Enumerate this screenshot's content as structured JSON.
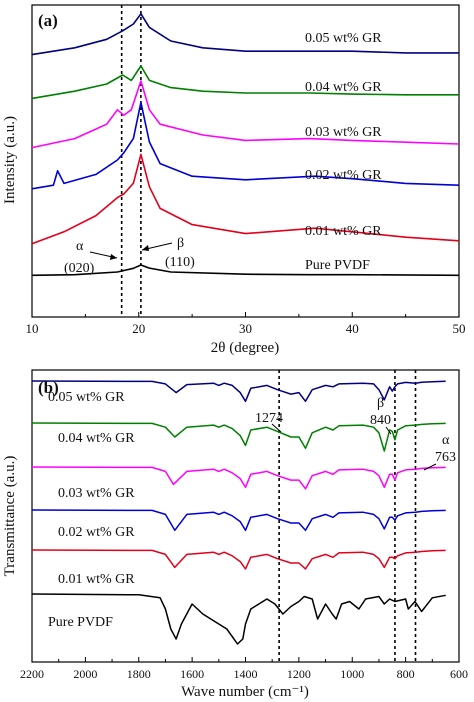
{
  "chart_data": [
    {
      "type": "line",
      "panel_label": "(a)",
      "xlabel": "2θ (degree)",
      "ylabel": "Intensity (a.u.)",
      "xlim": [
        10,
        50
      ],
      "x_ticks": [
        "10",
        "20",
        "30",
        "40",
        "50"
      ],
      "reference_lines_x": [
        18.4,
        20.2
      ],
      "annotations": {
        "alpha": "α",
        "alpha_plane": "(020)",
        "beta": "β",
        "beta_plane": "(110)"
      },
      "series": [
        {
          "name": "Pure PVDF",
          "color": "#000000",
          "x": [
            10,
            14,
            18,
            19.5,
            20.2,
            21,
            23,
            30,
            36,
            40,
            50
          ],
          "y": [
            0.3,
            0.6,
            1.8,
            3.5,
            5.0,
            3.6,
            1.8,
            0.8,
            0.6,
            0.6,
            0.3
          ]
        },
        {
          "name": "0.01 wt% GR",
          "color": "#e3001b",
          "x": [
            10,
            13,
            16,
            18,
            18.6,
            19.5,
            20.2,
            21,
            22,
            25,
            30,
            36.5,
            40,
            45,
            50
          ],
          "y": [
            1.2,
            4.5,
            9.0,
            14.0,
            15.0,
            18.0,
            26.0,
            17.0,
            11.0,
            6.5,
            4.0,
            5.5,
            4.5,
            3.0,
            2.0
          ]
        },
        {
          "name": "0.02 wt% GR",
          "color": "#0000d8",
          "x": [
            10,
            12,
            12.4,
            13,
            16,
            18,
            18.6,
            19.5,
            20.2,
            21,
            22,
            25,
            30,
            36.5,
            40,
            45,
            50
          ],
          "y": [
            2.0,
            3.0,
            7.0,
            3.5,
            6.0,
            10.0,
            12.0,
            16.0,
            26.0,
            15.0,
            9.0,
            5.5,
            4.5,
            5.5,
            4.8,
            3.5,
            3.0
          ]
        },
        {
          "name": "0.03 wt% GR",
          "color": "#ff00ff",
          "x": [
            10,
            14,
            17,
            18,
            18.6,
            19.3,
            20.2,
            21,
            22,
            26,
            30,
            36,
            40,
            45,
            50
          ],
          "y": [
            1.5,
            4.0,
            8.0,
            12.0,
            10.5,
            12.0,
            20.0,
            12.0,
            8.0,
            5.0,
            3.5,
            4.0,
            3.5,
            3.0,
            2.5
          ]
        },
        {
          "name": "0.04 wt% GR",
          "color": "#008000",
          "x": [
            10,
            14,
            17,
            18.5,
            19.3,
            20.2,
            21,
            23,
            26,
            30,
            36,
            40,
            45,
            50
          ],
          "y": [
            1.0,
            3.0,
            5.0,
            7.5,
            6.0,
            10.0,
            6.0,
            4.0,
            3.0,
            2.5,
            2.5,
            2.2,
            2.0,
            2.0
          ]
        },
        {
          "name": "0.05 wt% GR",
          "color": "#000080",
          "x": [
            10,
            14,
            17,
            18.5,
            19.5,
            20.2,
            21,
            23,
            26,
            30,
            36,
            40,
            45,
            50
          ],
          "y": [
            1.0,
            3.0,
            5.5,
            8.0,
            10.0,
            13.0,
            9.0,
            5.0,
            3.0,
            2.0,
            2.0,
            2.0,
            1.5,
            1.5
          ]
        }
      ]
    },
    {
      "type": "line",
      "panel_label": "(b)",
      "xlabel": "Wave number (cm⁻¹)",
      "ylabel": "Transmittance (a.u.)",
      "xlim": [
        2200,
        600
      ],
      "x_reversed": true,
      "x_ticks": [
        "2200",
        "2000",
        "1800",
        "1600",
        "1400",
        "1200",
        "1000",
        "800",
        "600"
      ],
      "reference_lines_x": [
        1274,
        840,
        763
      ],
      "annotations": {
        "wn_1274": "1274",
        "beta": "β",
        "wn_840": "840",
        "alpha": "α",
        "wn_763": "763"
      },
      "series": [
        {
          "name": "0.05 wt% GR",
          "color": "#000080",
          "x": [
            2200,
            1750,
            1700,
            1660,
            1620,
            1520,
            1500,
            1480,
            1450,
            1420,
            1400,
            1380,
            1320,
            1280,
            1230,
            1200,
            1175,
            1150,
            1100,
            1072,
            1050,
            960,
            920,
            900,
            880,
            860,
            850,
            840,
            830,
            800,
            763,
            740,
            700,
            650
          ],
          "y": [
            0,
            -0.3,
            -2,
            -8,
            -2.5,
            -1.5,
            -3,
            -1.5,
            -3,
            -8,
            -14,
            -5,
            -3,
            -6,
            -9,
            -8,
            -14,
            -6,
            -3,
            -4,
            -2,
            -1.5,
            -2,
            -6,
            -13,
            -4,
            -7,
            -4,
            -2,
            -1,
            -1.5,
            -0.8,
            -0.5,
            -0.2
          ]
        },
        {
          "name": "0.04 wt% GR",
          "color": "#008000",
          "x": [
            2200,
            1750,
            1700,
            1665,
            1620,
            1520,
            1500,
            1480,
            1450,
            1420,
            1400,
            1380,
            1320,
            1280,
            1230,
            1200,
            1175,
            1150,
            1100,
            1072,
            1050,
            960,
            920,
            900,
            880,
            860,
            850,
            840,
            830,
            800,
            763,
            740,
            700,
            650
          ],
          "y": [
            0,
            -0.3,
            -3,
            -10,
            -3,
            -1.5,
            -3,
            -1.5,
            -4,
            -9,
            -16,
            -5,
            -3,
            -6,
            -10,
            -10,
            -18,
            -7,
            -3,
            -5,
            -2,
            -1.5,
            -3,
            -7,
            -20,
            -5,
            -6,
            -12,
            -5,
            -2,
            -1.5,
            -1,
            -0.5,
            -0.3
          ]
        },
        {
          "name": "0.03 wt% GR",
          "color": "#ff00ff",
          "x": [
            2200,
            1750,
            1700,
            1670,
            1620,
            1520,
            1500,
            1480,
            1450,
            1420,
            1400,
            1380,
            1320,
            1280,
            1230,
            1200,
            1175,
            1150,
            1100,
            1072,
            1050,
            960,
            920,
            900,
            880,
            860,
            850,
            840,
            830,
            800,
            763,
            740,
            700,
            650
          ],
          "y": [
            0,
            -0.3,
            -3,
            -12,
            -3,
            -1.5,
            -3,
            -1.5,
            -4,
            -8,
            -14,
            -5,
            -3,
            -6,
            -9,
            -9,
            -15,
            -6,
            -3,
            -5,
            -2,
            -1.5,
            -3,
            -6,
            -14,
            -5,
            -5,
            -9,
            -4,
            -2,
            -1.5,
            -1,
            -0.5,
            -0.3
          ]
        },
        {
          "name": "0.02 wt% GR",
          "color": "#0000d8",
          "x": [
            2200,
            1750,
            1700,
            1665,
            1620,
            1520,
            1500,
            1480,
            1450,
            1420,
            1400,
            1380,
            1320,
            1280,
            1230,
            1200,
            1175,
            1150,
            1100,
            1072,
            1050,
            960,
            920,
            900,
            880,
            860,
            850,
            840,
            830,
            800,
            763,
            740,
            700,
            650
          ],
          "y": [
            0,
            -0.3,
            -3,
            -14,
            -3,
            -1.5,
            -3,
            -1.5,
            -4,
            -8,
            -14,
            -5,
            -3,
            -6,
            -9,
            -9,
            -14,
            -6,
            -3,
            -5,
            -2,
            -1.5,
            -3,
            -6,
            -13,
            -5,
            -5,
            -7,
            -4,
            -2,
            -1.5,
            -1,
            -0.5,
            -0.3
          ]
        },
        {
          "name": "0.01 wt% GR",
          "color": "#e3001b",
          "x": [
            2200,
            1750,
            1700,
            1665,
            1620,
            1520,
            1500,
            1480,
            1450,
            1420,
            1400,
            1380,
            1320,
            1280,
            1230,
            1200,
            1175,
            1150,
            1100,
            1072,
            1050,
            960,
            920,
            900,
            880,
            860,
            850,
            840,
            830,
            800,
            763,
            740,
            700,
            650
          ],
          "y": [
            0,
            -0.3,
            -3,
            -12,
            -3,
            -1.5,
            -3,
            -1.5,
            -4,
            -8,
            -13,
            -5,
            -3,
            -6,
            -9,
            -9,
            -13,
            -6,
            -3,
            -5,
            -2,
            -1.5,
            -3,
            -6,
            -12,
            -5,
            -5,
            -6,
            -4,
            -2,
            -1.5,
            -1,
            -0.5,
            -0.3
          ]
        },
        {
          "name": "Pure PVDF",
          "color": "#000000",
          "x": [
            2200,
            1800,
            1720,
            1700,
            1680,
            1660,
            1640,
            1600,
            1560,
            1500,
            1470,
            1450,
            1430,
            1410,
            1400,
            1380,
            1320,
            1290,
            1260,
            1230,
            1200,
            1180,
            1150,
            1130,
            1100,
            1075,
            1060,
            1040,
            1010,
            975,
            950,
            900,
            880,
            860,
            840,
            800,
            790,
            765,
            740,
            700,
            650
          ],
          "y": [
            0,
            -0.3,
            -1.5,
            -6,
            -14,
            -18,
            -12,
            -4,
            -8,
            -12,
            -14,
            -17,
            -20,
            -18,
            -12,
            -6,
            -2,
            -4,
            -8,
            -5,
            -3,
            -1,
            -2,
            -10,
            -4,
            -8,
            -10,
            -4,
            -3,
            -6,
            -2,
            -1,
            -4,
            -2,
            -3,
            -2,
            -6,
            -3,
            -7,
            -1.5,
            -0.5
          ]
        }
      ]
    }
  ],
  "legend_labels_a": [
    "0.05 wt% GR",
    "0.04 wt% GR",
    "0.03 wt% GR",
    "0.02 wt% GR",
    "0.01 wt% GR",
    "Pure PVDF"
  ],
  "legend_labels_b": [
    "0.05 wt% GR",
    "0.04 wt% GR",
    "0.03 wt% GR",
    "0.02 wt% GR",
    "0.01 wt% GR",
    "Pure PVDF"
  ]
}
